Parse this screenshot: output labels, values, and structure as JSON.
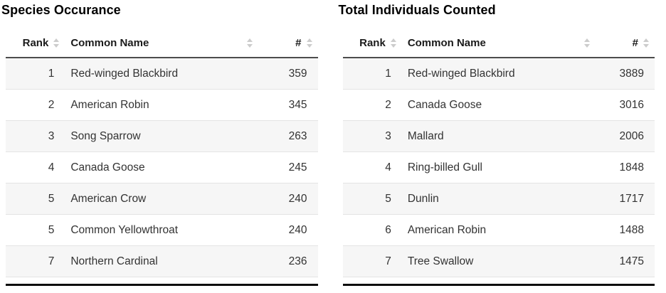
{
  "colors": {
    "background": "#ffffff",
    "title_text": "#000000",
    "header_text": "#1a1a1a",
    "body_text": "#333333",
    "header_bottom_border": "#4d4d4d",
    "table_bottom_border": "#0c0c0c",
    "row_stripe": "#f6f6f6",
    "row_divider": "#e4e4e4",
    "sort_icon": "#cccccc"
  },
  "tables": [
    {
      "id": "species-occurrence",
      "title": "Species Occurance",
      "columns": [
        {
          "key": "rank",
          "label": "Rank",
          "align": "right",
          "sortable": true
        },
        {
          "key": "name",
          "label": "Common Name",
          "align": "left",
          "sortable": true
        },
        {
          "key": "count",
          "label": "#",
          "align": "right",
          "sortable": true
        }
      ],
      "rows": [
        {
          "rank": "1",
          "name": "Red-winged Blackbird",
          "count": "359"
        },
        {
          "rank": "2",
          "name": "American Robin",
          "count": "345"
        },
        {
          "rank": "3",
          "name": "Song Sparrow",
          "count": "263"
        },
        {
          "rank": "4",
          "name": "Canada Goose",
          "count": "245"
        },
        {
          "rank": "5",
          "name": "American Crow",
          "count": "240"
        },
        {
          "rank": "5",
          "name": "Common Yellowthroat",
          "count": "240"
        },
        {
          "rank": "7",
          "name": "Northern Cardinal",
          "count": "236"
        }
      ]
    },
    {
      "id": "total-individuals",
      "title": "Total Individuals Counted",
      "columns": [
        {
          "key": "rank",
          "label": "Rank",
          "align": "right",
          "sortable": true
        },
        {
          "key": "name",
          "label": "Common Name",
          "align": "left",
          "sortable": true
        },
        {
          "key": "count",
          "label": "#",
          "align": "right",
          "sortable": true
        }
      ],
      "rows": [
        {
          "rank": "1",
          "name": "Red-winged Blackbird",
          "count": "3889"
        },
        {
          "rank": "2",
          "name": "Canada Goose",
          "count": "3016"
        },
        {
          "rank": "3",
          "name": "Mallard",
          "count": "2006"
        },
        {
          "rank": "4",
          "name": "Ring-billed Gull",
          "count": "1848"
        },
        {
          "rank": "5",
          "name": "Dunlin",
          "count": "1717"
        },
        {
          "rank": "6",
          "name": "American Robin",
          "count": "1488"
        },
        {
          "rank": "7",
          "name": "Tree Swallow",
          "count": "1475"
        }
      ]
    }
  ]
}
